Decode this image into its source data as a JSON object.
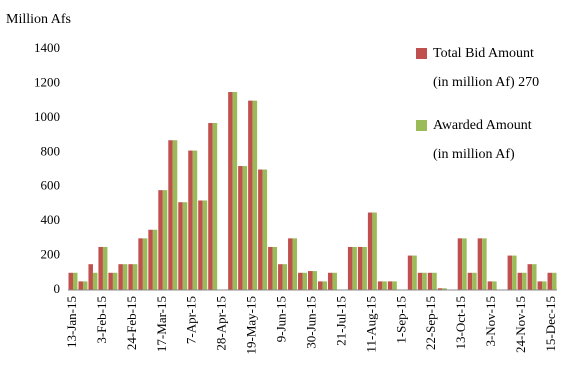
{
  "chart_data": {
    "type": "bar",
    "y_label": "Million Afs",
    "categories": [
      "13-Jan-15",
      null,
      null,
      "3-Feb-15",
      null,
      null,
      "24-Feb-15",
      null,
      null,
      "17-Mar-15",
      null,
      null,
      "7-Apr-15",
      null,
      null,
      "28-Apr-15",
      null,
      null,
      "19-May-15",
      null,
      null,
      "9-Jun-15",
      null,
      null,
      "30-Jun-15",
      null,
      null,
      "21-Jul-15",
      null,
      null,
      "11-Aug-15",
      null,
      null,
      "1-Sep-15",
      null,
      null,
      "22-Sep-15",
      null,
      null,
      "13-Oct-15",
      null,
      null,
      "3-Nov-15",
      null,
      null,
      "24-Nov-15",
      null,
      null,
      "15-Dec-15"
    ],
    "series": [
      {
        "name": "Total Bid Amount (in million Af) 270",
        "color": "#c0504d",
        "values": [
          100,
          50,
          150,
          250,
          100,
          150,
          150,
          300,
          350,
          580,
          870,
          510,
          810,
          520,
          970,
          0,
          1150,
          720,
          1100,
          700,
          250,
          150,
          300,
          100,
          110,
          50,
          100,
          0,
          250,
          250,
          450,
          50,
          50,
          0,
          200,
          100,
          100,
          10,
          0,
          300,
          100,
          300,
          50,
          0,
          200,
          100,
          150,
          50,
          100
        ]
      },
      {
        "name": "Awarded Amount (in million Af)",
        "color": "#9bbb59",
        "values": [
          100,
          50,
          100,
          250,
          100,
          150,
          150,
          300,
          350,
          580,
          870,
          510,
          810,
          520,
          970,
          0,
          1150,
          720,
          1100,
          700,
          250,
          150,
          300,
          100,
          110,
          50,
          100,
          0,
          250,
          250,
          450,
          50,
          50,
          0,
          200,
          100,
          100,
          10,
          0,
          300,
          100,
          300,
          50,
          0,
          200,
          100,
          150,
          50,
          100
        ]
      }
    ],
    "ylim": [
      0,
      1400
    ],
    "yticks": [
      0,
      200,
      400,
      600,
      800,
      1000,
      1200,
      1400
    ],
    "grid": false,
    "legend_position": "upper right"
  }
}
